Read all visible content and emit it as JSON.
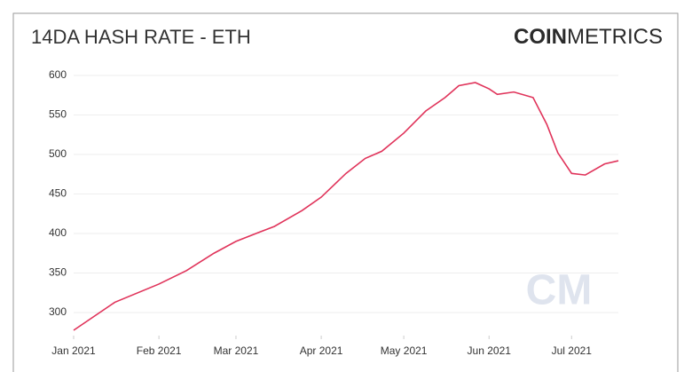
{
  "chart_data": {
    "type": "line",
    "title": "14DA HASH RATE - ETH",
    "logo": {
      "bold": "COIN",
      "light": "METRICS"
    },
    "watermark": "CM",
    "x": [
      0,
      15,
      31,
      41,
      51,
      59,
      67,
      73,
      83,
      90,
      99,
      106,
      112,
      120,
      128,
      135,
      140,
      146,
      151,
      154,
      160,
      167,
      172,
      176,
      181,
      186,
      193,
      198
    ],
    "series": [
      {
        "name": "Hash Rate",
        "color": "#e0335a",
        "values": [
          277.5,
          313,
          336,
          353,
          375,
          390,
          401,
          409,
          429,
          446,
          476,
          495,
          504,
          527,
          555,
          572,
          587,
          591,
          583,
          576,
          579,
          572,
          538,
          502,
          476,
          474,
          488,
          492
        ]
      }
    ],
    "xlim": [
      0,
      198
    ],
    "xticks": [
      {
        "value": 0,
        "label": "Jan 2021"
      },
      {
        "value": 31,
        "label": "Feb 2021"
      },
      {
        "value": 59,
        "label": "Mar 2021"
      },
      {
        "value": 90,
        "label": "Apr 2021"
      },
      {
        "value": 120,
        "label": "May 2021"
      },
      {
        "value": 151,
        "label": "Jun 2021"
      },
      {
        "value": 181,
        "label": "Jul 2021"
      }
    ],
    "ylim": [
      275,
      605
    ],
    "yticks": [
      300,
      350,
      400,
      450,
      500,
      550,
      600
    ],
    "grid": true
  }
}
